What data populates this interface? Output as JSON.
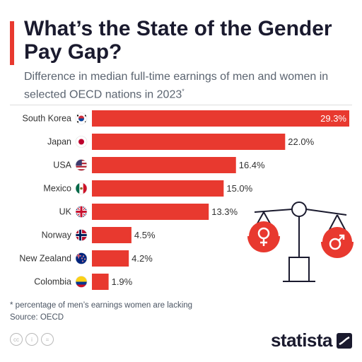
{
  "header": {
    "title": "What’s the State of the Gender Pay Gap?",
    "subtitle": "Difference in median full-time earnings of men and women in selected OECD nations in 2023",
    "subtitle_mark": "*"
  },
  "colors": {
    "accent": "#e8392f",
    "text": "#1a1a2e",
    "muted": "#5b6470"
  },
  "chart_data": {
    "type": "bar",
    "orientation": "horizontal",
    "categories": [
      "South Korea",
      "Japan",
      "USA",
      "Mexico",
      "UK",
      "Norway",
      "New Zealand",
      "Colombia"
    ],
    "values": [
      29.3,
      22.0,
      16.4,
      15.0,
      13.3,
      4.5,
      4.2,
      1.9
    ],
    "value_labels": [
      "29.3%",
      "22.0%",
      "16.4%",
      "15.0%",
      "13.3%",
      "4.5%",
      "4.2%",
      "1.9%"
    ],
    "flag_icons": [
      "south-korea-flag-icon",
      "japan-flag-icon",
      "usa-flag-icon",
      "mexico-flag-icon",
      "uk-flag-icon",
      "norway-flag-icon",
      "new-zealand-flag-icon",
      "colombia-flag-icon"
    ],
    "xlim": [
      0,
      29.3
    ],
    "bar_color": "#e8392f",
    "grid": false,
    "legend": "none"
  },
  "illustration": {
    "icons": [
      "scale-icon",
      "female-symbol-icon",
      "male-symbol-icon"
    ]
  },
  "footer": {
    "footnote": "* percentage of men’s earnings women are lacking",
    "source": "Source: OECD",
    "license_icons": [
      "cc-icon",
      "attribution-icon",
      "no-derivatives-icon"
    ],
    "license_glyphs": [
      "cc",
      "i",
      "="
    ],
    "brand": "statista"
  }
}
